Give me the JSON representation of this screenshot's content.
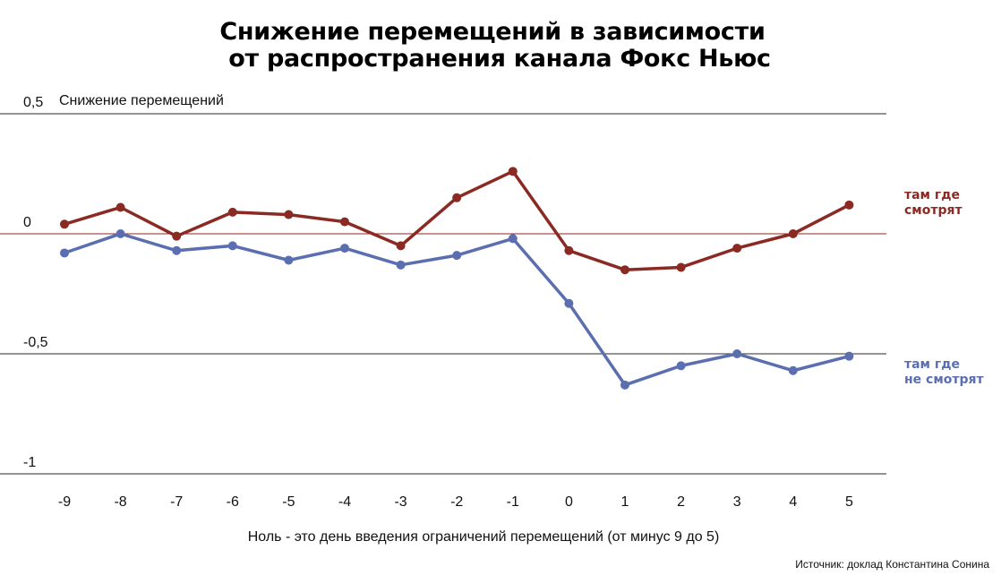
{
  "title_line1": "Снижение перемещений в зависимости",
  "title_line2": "от распространения канала Фокс Ньюс",
  "chart_data": {
    "type": "line",
    "title": "Снижение перемещений в зависимости от распространения канала Фокс Ньюс",
    "ylabel": "Снижение перемещений",
    "xlabel": "Ноль - это день введения ограничений перемещений (от минус 9 до 5)",
    "source": "Источник: доклад Константина Сонина",
    "x": [
      -9,
      -8,
      -7,
      -6,
      -5,
      -4,
      -3,
      -2,
      -1,
      0,
      1,
      2,
      3,
      4,
      5
    ],
    "x_tick_labels": [
      "-9",
      "-8",
      "-7",
      "-6",
      "-5",
      "-4",
      "-3",
      "-2",
      "-1",
      "0",
      "1",
      "2",
      "3",
      "4",
      "5"
    ],
    "y_ticks": [
      0.5,
      0,
      -0.5,
      -1
    ],
    "y_tick_labels": [
      "0,5",
      "0",
      "-0,5",
      "-1"
    ],
    "ylim": [
      -1,
      0.5
    ],
    "grid": "horizontal",
    "series": [
      {
        "label_line1": "там где",
        "label_line2": "смотрят",
        "color": "#8b2a22",
        "values": [
          0.04,
          0.11,
          -0.01,
          0.09,
          0.08,
          0.05,
          -0.05,
          0.15,
          0.26,
          -0.07,
          -0.15,
          -0.14,
          -0.06,
          0.0,
          0.12
        ]
      },
      {
        "label_line1": "там где",
        "label_line2": "не смотрят",
        "color": "#5b6fb0",
        "values": [
          -0.08,
          0.0,
          -0.07,
          -0.05,
          -0.11,
          -0.06,
          -0.13,
          -0.09,
          -0.02,
          -0.29,
          -0.63,
          -0.55,
          -0.5,
          -0.57,
          -0.51
        ]
      }
    ]
  }
}
